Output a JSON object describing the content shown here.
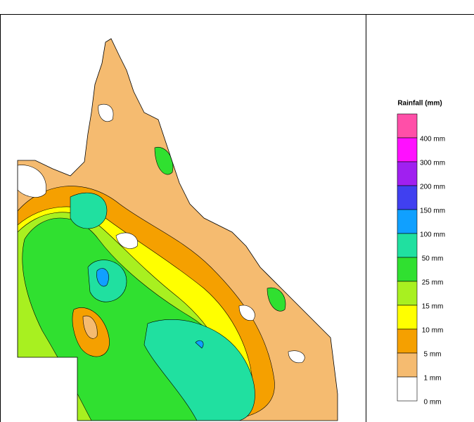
{
  "legend": {
    "title": "Rainfall (mm)",
    "labels": [
      "400 mm",
      "300 mm",
      "200 mm",
      "150 mm",
      "100 mm",
      "50 mm",
      "25 mm",
      "15 mm",
      "10 mm",
      "5 mm",
      "1 mm",
      "0 mm"
    ],
    "colors": [
      "#ff4fa8",
      "#ff10ff",
      "#a020f0",
      "#4040f0",
      "#10a0ff",
      "#20e0a0",
      "#30e030",
      "#a8f020",
      "#ffff00",
      "#f5a000",
      "#f5bb70",
      "#ffffff"
    ]
  }
}
